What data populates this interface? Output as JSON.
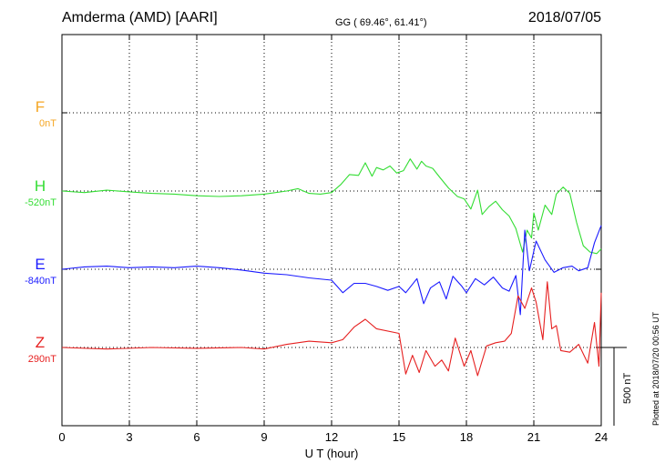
{
  "header": {
    "station": "Amderma (AMD)  [AARI]",
    "coords": "GG ( 69.46°,  61.41°)",
    "date": "2018/07/05"
  },
  "footer": {
    "plotted": "Plotted at 2018/07/20 00:56 UT"
  },
  "scale_label": "500 nT",
  "chart_data": {
    "type": "line",
    "title": "Amderma (AMD)  [AARI]",
    "xlabel": "U T (hour)",
    "ylabel": "",
    "xlim": [
      0,
      24
    ],
    "x_ticks": [
      "0",
      "3",
      "6",
      "9",
      "12",
      "15",
      "18",
      "21",
      "24"
    ],
    "grid": "dotted vertical every 3 h; dashed baselines per channel",
    "scale_bar_nT": 500,
    "series": [
      {
        "name": "F",
        "baseline_label": "0nT",
        "color": "#f5a623",
        "points": []
      },
      {
        "name": "H",
        "baseline_label": "-520nT",
        "color": "#33dd33",
        "points": [
          [
            0,
            0
          ],
          [
            1,
            -10
          ],
          [
            2,
            5
          ],
          [
            3,
            -5
          ],
          [
            4,
            -15
          ],
          [
            5,
            -20
          ],
          [
            6,
            -30
          ],
          [
            7,
            -35
          ],
          [
            8,
            -30
          ],
          [
            9,
            -20
          ],
          [
            10,
            0
          ],
          [
            10.5,
            15
          ],
          [
            11,
            -15
          ],
          [
            11.5,
            -20
          ],
          [
            12,
            -10
          ],
          [
            12.4,
            40
          ],
          [
            12.8,
            105
          ],
          [
            13.2,
            100
          ],
          [
            13.5,
            180
          ],
          [
            13.8,
            95
          ],
          [
            14,
            150
          ],
          [
            14.3,
            135
          ],
          [
            14.6,
            160
          ],
          [
            14.9,
            115
          ],
          [
            15.2,
            130
          ],
          [
            15.5,
            205
          ],
          [
            15.8,
            140
          ],
          [
            16,
            190
          ],
          [
            16.2,
            160
          ],
          [
            16.5,
            145
          ],
          [
            16.8,
            90
          ],
          [
            17.2,
            20
          ],
          [
            17.6,
            -35
          ],
          [
            17.9,
            -50
          ],
          [
            18.2,
            -115
          ],
          [
            18.5,
            5
          ],
          [
            18.7,
            -150
          ],
          [
            19,
            -100
          ],
          [
            19.3,
            -65
          ],
          [
            19.6,
            -120
          ],
          [
            19.9,
            -160
          ],
          [
            20.2,
            -240
          ],
          [
            20.5,
            -390
          ],
          [
            20.7,
            -250
          ],
          [
            20.9,
            -300
          ],
          [
            21,
            -140
          ],
          [
            21.2,
            -250
          ],
          [
            21.5,
            -90
          ],
          [
            21.8,
            -150
          ],
          [
            22,
            -20
          ],
          [
            22.3,
            25
          ],
          [
            22.6,
            -15
          ],
          [
            22.9,
            -200
          ],
          [
            23.2,
            -350
          ],
          [
            23.5,
            -390
          ],
          [
            23.8,
            -400
          ],
          [
            24,
            -370
          ]
        ]
      },
      {
        "name": "E",
        "baseline_label": "-840nT",
        "color": "#1a1aff",
        "points": [
          [
            0,
            0
          ],
          [
            1,
            15
          ],
          [
            2,
            20
          ],
          [
            3,
            10
          ],
          [
            4,
            15
          ],
          [
            5,
            10
          ],
          [
            6,
            20
          ],
          [
            7,
            10
          ],
          [
            8,
            -5
          ],
          [
            9,
            -25
          ],
          [
            10,
            -35
          ],
          [
            11,
            -55
          ],
          [
            12,
            -70
          ],
          [
            12.5,
            -150
          ],
          [
            13,
            -90
          ],
          [
            13.5,
            -90
          ],
          [
            14,
            -110
          ],
          [
            14.5,
            -135
          ],
          [
            15,
            -110
          ],
          [
            15.3,
            -150
          ],
          [
            15.8,
            -60
          ],
          [
            16.1,
            -220
          ],
          [
            16.4,
            -120
          ],
          [
            16.8,
            -80
          ],
          [
            17.1,
            -190
          ],
          [
            17.4,
            -45
          ],
          [
            17.8,
            -110
          ],
          [
            18,
            -150
          ],
          [
            18.4,
            -60
          ],
          [
            18.8,
            -100
          ],
          [
            19.2,
            -50
          ],
          [
            19.6,
            -120
          ],
          [
            19.9,
            -140
          ],
          [
            20.2,
            -40
          ],
          [
            20.4,
            -290
          ],
          [
            20.6,
            250
          ],
          [
            20.8,
            -10
          ],
          [
            21.1,
            180
          ],
          [
            21.5,
            60
          ],
          [
            21.9,
            -20
          ],
          [
            22.3,
            10
          ],
          [
            22.7,
            20
          ],
          [
            23,
            -10
          ],
          [
            23.4,
            10
          ],
          [
            23.7,
            170
          ],
          [
            24,
            280
          ]
        ]
      },
      {
        "name": "Z",
        "baseline_label": "290nT",
        "color": "#e62020",
        "points": [
          [
            0,
            0
          ],
          [
            2,
            -10
          ],
          [
            4,
            0
          ],
          [
            6,
            -5
          ],
          [
            8,
            0
          ],
          [
            9,
            -10
          ],
          [
            10,
            20
          ],
          [
            11,
            40
          ],
          [
            12,
            30
          ],
          [
            12.5,
            50
          ],
          [
            13,
            130
          ],
          [
            13.5,
            180
          ],
          [
            14,
            120
          ],
          [
            15,
            90
          ],
          [
            15.3,
            -170
          ],
          [
            15.6,
            -50
          ],
          [
            15.9,
            -160
          ],
          [
            16.2,
            -20
          ],
          [
            16.6,
            -120
          ],
          [
            16.9,
            -80
          ],
          [
            17.2,
            -150
          ],
          [
            17.5,
            60
          ],
          [
            17.9,
            -120
          ],
          [
            18.2,
            -20
          ],
          [
            18.5,
            -180
          ],
          [
            18.9,
            10
          ],
          [
            19.3,
            30
          ],
          [
            19.7,
            40
          ],
          [
            20,
            90
          ],
          [
            20.3,
            330
          ],
          [
            20.6,
            250
          ],
          [
            20.9,
            380
          ],
          [
            21.1,
            290
          ],
          [
            21.4,
            50
          ],
          [
            21.6,
            420
          ],
          [
            21.8,
            120
          ],
          [
            22,
            140
          ],
          [
            22.2,
            -20
          ],
          [
            22.6,
            -30
          ],
          [
            23,
            20
          ],
          [
            23.4,
            -100
          ],
          [
            23.7,
            160
          ],
          [
            23.9,
            -120
          ],
          [
            24,
            350
          ]
        ]
      }
    ]
  }
}
